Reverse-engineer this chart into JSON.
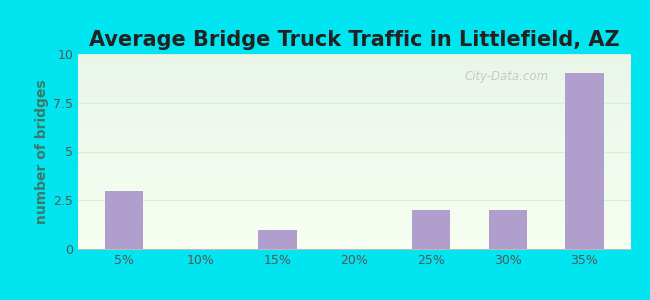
{
  "title": "Average Bridge Truck Traffic in Littlefield, AZ",
  "categories": [
    "5%",
    "10%",
    "15%",
    "20%",
    "25%",
    "30%",
    "35%"
  ],
  "values": [
    3,
    0,
    1,
    0,
    2,
    2,
    9
  ],
  "bar_color": "#b09fcc",
  "ylabel": "number of bridges",
  "ylim": [
    0,
    10
  ],
  "yticks": [
    0,
    2.5,
    5,
    7.5,
    10
  ],
  "background_outer": "#00e5f0",
  "background_inner_top": "#eaf5ea",
  "background_inner_bottom": "#f5fef0",
  "title_fontsize": 15,
  "axis_label_fontsize": 10,
  "tick_fontsize": 9,
  "bar_width": 0.5,
  "ylabel_color": "#3a7a6a",
  "tick_color": "#555555",
  "gridline_color": "#d8eed8",
  "watermark_text": "City-Data.com",
  "watermark_color": "#bbbbbb"
}
